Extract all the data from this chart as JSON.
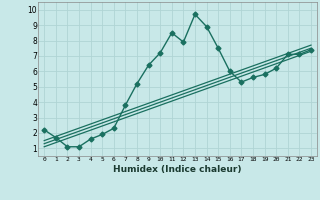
{
  "title": "",
  "xlabel": "Humidex (Indice chaleur)",
  "ylabel": "",
  "background_color": "#c8e8e8",
  "grid_color": "#b0d4d4",
  "line_color": "#1a7060",
  "xlim": [
    -0.5,
    23.5
  ],
  "ylim": [
    0.5,
    10.5
  ],
  "xticks": [
    0,
    1,
    2,
    3,
    4,
    5,
    6,
    7,
    8,
    9,
    10,
    11,
    12,
    13,
    14,
    15,
    16,
    17,
    18,
    19,
    20,
    21,
    22,
    23
  ],
  "yticks": [
    1,
    2,
    3,
    4,
    5,
    6,
    7,
    8,
    9,
    10
  ],
  "series": [
    {
      "x": [
        0,
        1,
        2,
        3,
        4,
        5,
        6,
        7,
        8,
        9,
        10,
        11,
        12,
        13,
        14,
        15,
        16,
        17,
        18,
        19,
        20,
        21,
        22,
        23
      ],
      "y": [
        2.2,
        1.7,
        1.1,
        1.1,
        1.6,
        1.9,
        2.3,
        3.8,
        5.2,
        6.4,
        7.2,
        8.5,
        7.9,
        9.7,
        8.9,
        7.5,
        6.0,
        5.3,
        5.6,
        5.8,
        6.2,
        7.1,
        7.1,
        7.4
      ],
      "marker": "D",
      "markersize": 2.5,
      "linewidth": 1.0,
      "linestyle": "-"
    },
    {
      "x": [
        0,
        23
      ],
      "y": [
        1.1,
        7.3
      ],
      "marker": null,
      "markersize": 0,
      "linewidth": 0.9,
      "linestyle": "-"
    },
    {
      "x": [
        0,
        23
      ],
      "y": [
        1.3,
        7.5
      ],
      "marker": null,
      "markersize": 0,
      "linewidth": 0.9,
      "linestyle": "-"
    },
    {
      "x": [
        0,
        23
      ],
      "y": [
        1.5,
        7.7
      ],
      "marker": null,
      "markersize": 0,
      "linewidth": 0.9,
      "linestyle": "-"
    }
  ]
}
